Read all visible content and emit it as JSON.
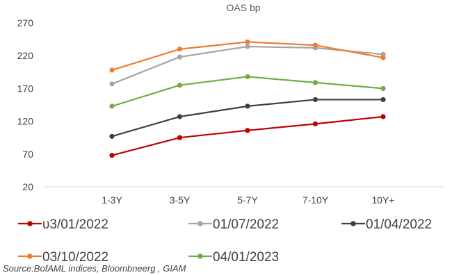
{
  "chart_data": {
    "type": "line",
    "title": "OAS bp",
    "categories": [
      "1-3Y",
      "3-5Y",
      "5-7Y",
      "7-10Y",
      "10Y+"
    ],
    "ylim": [
      20,
      270
    ],
    "yticks": [
      20,
      70,
      120,
      170,
      220,
      270
    ],
    "grid": false,
    "legend_placement": "bottom",
    "series": [
      {
        "name": "03/01/2022",
        "legend_label": "υ3/01/2022",
        "color": "#c00000",
        "values": [
          68,
          95,
          106,
          116,
          127
        ]
      },
      {
        "name": "01/07/2022",
        "legend_label": "01/07/2022",
        "color": "#a5a5a5",
        "values": [
          177,
          218,
          234,
          232,
          222
        ]
      },
      {
        "name": "01/04/2022",
        "legend_label": "01/04/2022",
        "color": "#404040",
        "values": [
          97,
          127,
          143,
          153,
          153
        ]
      },
      {
        "name": "03/10/2022",
        "legend_label": "03/10/2022",
        "color": "#ed7d31",
        "values": [
          198,
          230,
          241,
          236,
          217
        ]
      },
      {
        "name": "04/01/2023",
        "legend_label": "04/01/2023",
        "color": "#70ad47",
        "values": [
          143,
          175,
          188,
          179,
          170
        ]
      }
    ]
  },
  "source": "Source:BofAML indices, Bloombneerg , GIAM"
}
